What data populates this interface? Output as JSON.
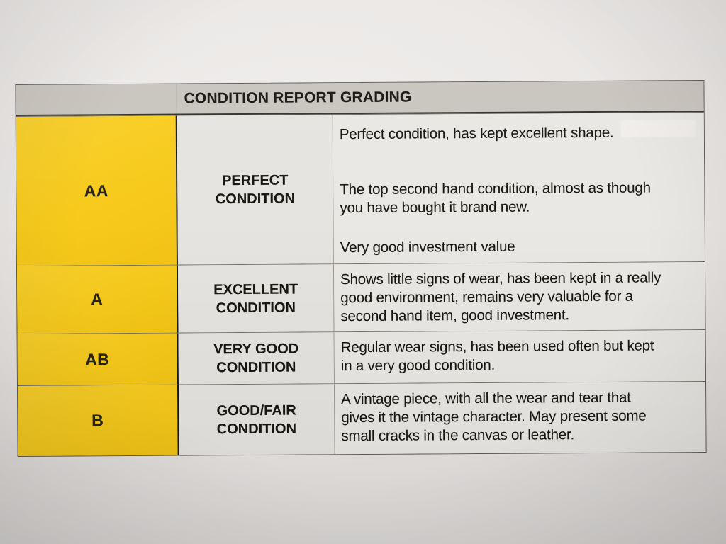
{
  "photo": {
    "paper_color": "#e8e5e3",
    "vignette": true
  },
  "table": {
    "title": "CONDITION REPORT GRADING",
    "colors": {
      "header_bg": "#c9c5be",
      "grade_cell_bg": "#f7ca1c",
      "condition_cell_bg": "#e6e4e0",
      "description_cell_bg": "#eae8e4",
      "text": "#181712",
      "heavy_border": "#1c1b16"
    },
    "rows": [
      {
        "grade": "AA",
        "condition": "PERFECT\nCONDITION",
        "description_paragraphs": [
          "Perfect condition, has kept excellent shape.",
          "The top second hand condition, almost as though\nyou have bought it brand new.",
          "Very good investment value"
        ]
      },
      {
        "grade": "A",
        "condition": "EXCELLENT\nCONDITION",
        "description_paragraphs": [
          "Shows little signs of wear, has been kept in a really\ngood environment, remains very valuable for a\nsecond hand item, good investment."
        ]
      },
      {
        "grade": "AB",
        "condition": "VERY GOOD\nCONDITION",
        "description_paragraphs": [
          "Regular wear signs, has been used often but kept\nin a very good condition."
        ]
      },
      {
        "grade": "B",
        "condition": "GOOD/FAIR\nCONDITION",
        "description_paragraphs": [
          "A vintage piece, with all the wear and tear that\ngives it the vintage character. May present some\nsmall cracks in the canvas or leather."
        ]
      }
    ]
  }
}
